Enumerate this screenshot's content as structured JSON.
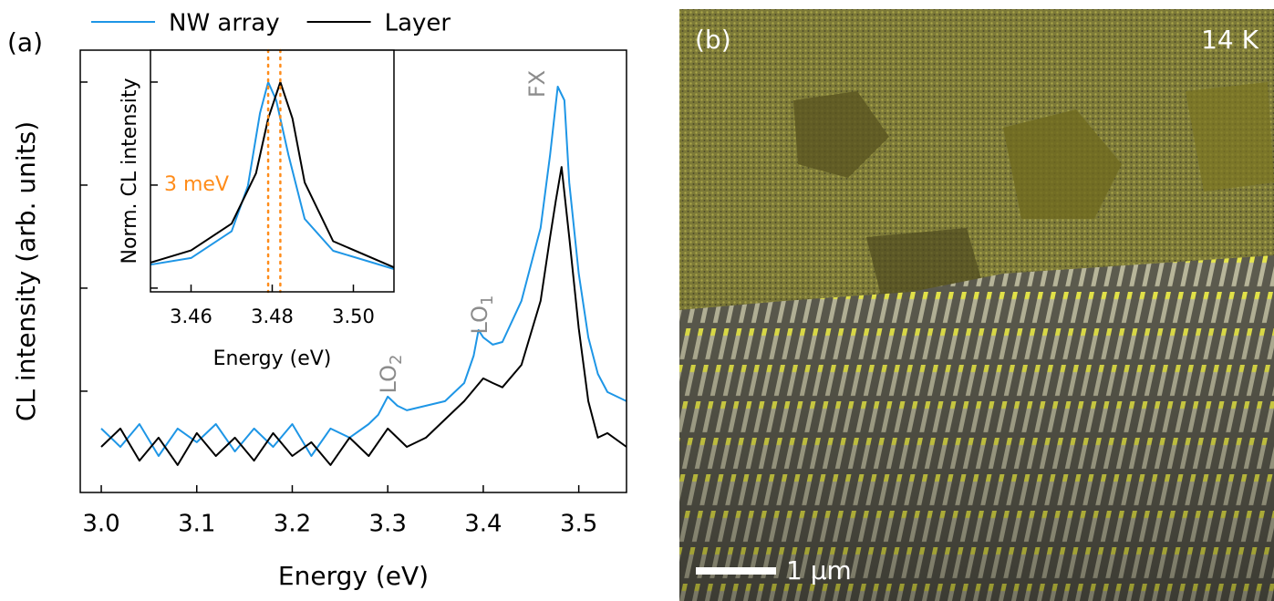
{
  "chart_data": [
    {
      "type": "line",
      "panel_label": "(a)",
      "x_label": "Energy (eV)",
      "y_label": "CL intensity (arb. units)",
      "log_y": true,
      "legend": "top",
      "xlim": [
        2.978,
        3.55
      ],
      "ylim": [
        0.104,
        2040
      ],
      "xticks": [
        {
          "value": 3,
          "label": "3.0"
        },
        3.1,
        3.2,
        3.3,
        3.4,
        3.5
      ],
      "yticks": [
        1,
        10,
        100,
        1000
      ],
      "annotations": [
        {
          "text": "FX"
        },
        {
          "text": "LO",
          "subscript": "1"
        },
        {
          "text": "LO",
          "subscript": "2"
        }
      ],
      "series": [
        {
          "name": "NW array",
          "color": "#1e96e6",
          "x": [
            3.0,
            3.02,
            3.04,
            3.06,
            3.08,
            3.1,
            3.12,
            3.14,
            3.16,
            3.18,
            3.2,
            3.22,
            3.24,
            3.26,
            3.28,
            3.29,
            3.3,
            3.31,
            3.32,
            3.34,
            3.36,
            3.38,
            3.39,
            3.395,
            3.4,
            3.41,
            3.42,
            3.44,
            3.46,
            3.47,
            3.478,
            3.485,
            3.49,
            3.5,
            3.51,
            3.52,
            3.53,
            3.55
          ],
          "values": [
            0.434,
            0.288,
            0.48,
            0.235,
            0.434,
            0.32,
            0.48,
            0.26,
            0.434,
            0.288,
            0.48,
            0.235,
            0.434,
            0.354,
            0.48,
            0.589,
            0.885,
            0.722,
            0.652,
            0.722,
            0.8,
            1.2,
            2.21,
            3.92,
            3.33,
            2.83,
            3.0,
            7.52,
            38.4,
            196,
            903,
            665,
            106,
            13.9,
            3.33,
            1.47,
            0.98,
            0.8
          ]
        },
        {
          "name": "Layer",
          "color": "#000000",
          "x": [
            3.0,
            3.02,
            3.04,
            3.06,
            3.08,
            3.1,
            3.12,
            3.14,
            3.16,
            3.18,
            3.2,
            3.22,
            3.24,
            3.26,
            3.28,
            3.3,
            3.32,
            3.34,
            3.36,
            3.38,
            3.4,
            3.41,
            3.42,
            3.44,
            3.46,
            3.47,
            3.476,
            3.482,
            3.49,
            3.5,
            3.51,
            3.52,
            3.53,
            3.55
          ],
          "values": [
            0.288,
            0.434,
            0.212,
            0.354,
            0.192,
            0.392,
            0.235,
            0.354,
            0.212,
            0.392,
            0.235,
            0.32,
            0.192,
            0.354,
            0.235,
            0.434,
            0.288,
            0.354,
            0.532,
            0.8,
            1.33,
            1.2,
            1.09,
            1.8,
            7.52,
            31.3,
            70.8,
            150,
            31.3,
            4.08,
            0.8,
            0.354,
            0.392,
            0.288
          ]
        }
      ]
    },
    {
      "type": "line",
      "x_label": "Energy (eV)",
      "y_label": "Norm. CL intensity",
      "log_y": true,
      "xlim": [
        3.45,
        3.51
      ],
      "ylim": [
        0.0092,
        2.04
      ],
      "xticks": [
        3.46,
        3.48,
        {
          "value": 3.5,
          "label": "3.50"
        }
      ],
      "yticks": [
        0.01,
        0.1,
        1
      ],
      "markers": [
        3.479,
        3.482
      ],
      "marker_color": "#ff8c1a",
      "annotations": [
        {
          "text": "3 meV"
        }
      ],
      "series": [
        {
          "name": "NW array",
          "color": "#1e96e6",
          "x": [
            3.45,
            3.46,
            3.47,
            3.474,
            3.477,
            3.479,
            3.481,
            3.484,
            3.488,
            3.495,
            3.51
          ],
          "values": [
            0.0169,
            0.0196,
            0.0356,
            0.098,
            0.5,
            1,
            0.665,
            0.196,
            0.047,
            0.023,
            0.0153
          ]
        },
        {
          "name": "Layer",
          "color": "#000000",
          "x": [
            3.45,
            3.46,
            3.47,
            3.476,
            3.479,
            3.482,
            3.485,
            3.488,
            3.495,
            3.51
          ],
          "values": [
            0.0177,
            0.0232,
            0.0423,
            0.13,
            0.443,
            1,
            0.443,
            0.106,
            0.0285,
            0.0159
          ]
        }
      ]
    }
  ],
  "image": {
    "panel_label": "(b)",
    "temperature": "14 K",
    "scale_bar": "1 µm"
  }
}
